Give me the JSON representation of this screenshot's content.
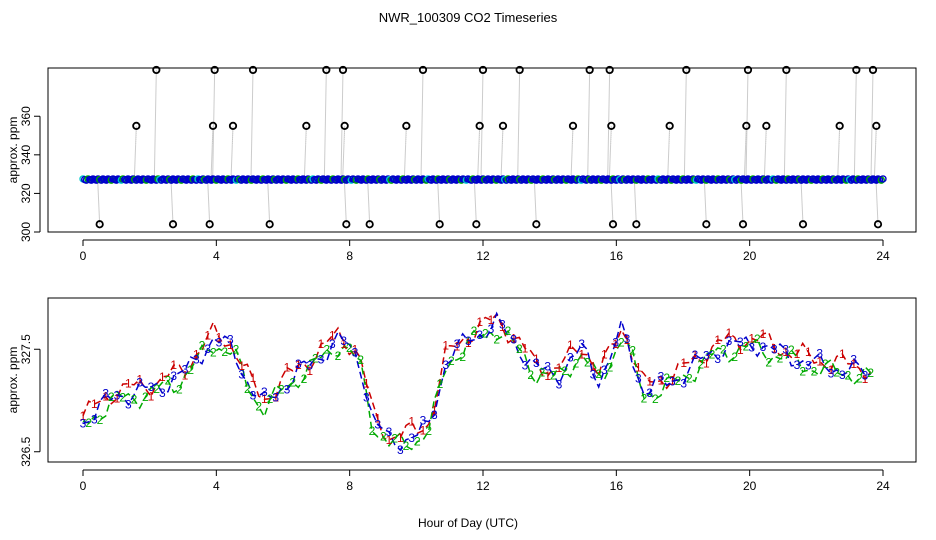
{
  "page": {
    "title": "NWR_100309  CO2 Timeseries",
    "xlabel": "Hour of Day (UTC)"
  },
  "chart_data": [
    {
      "type": "scatter",
      "ylabel": "approx. ppm",
      "xlim": [
        0,
        24
      ],
      "ylim": [
        300,
        385
      ],
      "x_ticks": [
        0,
        4,
        8,
        12,
        16,
        20,
        24
      ],
      "y_ticks": [
        300,
        320,
        340,
        360
      ],
      "baseline": 327.2,
      "baseline_colors": [
        "#0000cc",
        "#00aa00",
        "#00cccc"
      ],
      "outlier_color": "#000000",
      "connector_color": "#999999",
      "outliers": [
        {
          "x": 0.5,
          "y": 304
        },
        {
          "x": 1.6,
          "y": 355
        },
        {
          "x": 2.2,
          "y": 384
        },
        {
          "x": 2.7,
          "y": 304
        },
        {
          "x": 3.8,
          "y": 304
        },
        {
          "x": 3.9,
          "y": 355
        },
        {
          "x": 3.95,
          "y": 384
        },
        {
          "x": 4.5,
          "y": 355
        },
        {
          "x": 5.1,
          "y": 384
        },
        {
          "x": 5.6,
          "y": 304
        },
        {
          "x": 6.7,
          "y": 355
        },
        {
          "x": 7.3,
          "y": 384
        },
        {
          "x": 7.8,
          "y": 384
        },
        {
          "x": 7.85,
          "y": 355
        },
        {
          "x": 7.9,
          "y": 304
        },
        {
          "x": 8.6,
          "y": 304
        },
        {
          "x": 9.7,
          "y": 355
        },
        {
          "x": 10.2,
          "y": 384
        },
        {
          "x": 10.7,
          "y": 304
        },
        {
          "x": 11.8,
          "y": 304
        },
        {
          "x": 11.9,
          "y": 355
        },
        {
          "x": 12.0,
          "y": 384
        },
        {
          "x": 12.6,
          "y": 355
        },
        {
          "x": 13.1,
          "y": 384
        },
        {
          "x": 13.6,
          "y": 304
        },
        {
          "x": 14.7,
          "y": 355
        },
        {
          "x": 15.2,
          "y": 384
        },
        {
          "x": 15.8,
          "y": 384
        },
        {
          "x": 15.85,
          "y": 355
        },
        {
          "x": 15.9,
          "y": 304
        },
        {
          "x": 16.6,
          "y": 304
        },
        {
          "x": 17.6,
          "y": 355
        },
        {
          "x": 18.1,
          "y": 384
        },
        {
          "x": 18.7,
          "y": 304
        },
        {
          "x": 19.8,
          "y": 304
        },
        {
          "x": 19.9,
          "y": 355
        },
        {
          "x": 19.95,
          "y": 384
        },
        {
          "x": 20.5,
          "y": 355
        },
        {
          "x": 21.1,
          "y": 384
        },
        {
          "x": 21.6,
          "y": 304
        },
        {
          "x": 22.7,
          "y": 355
        },
        {
          "x": 23.2,
          "y": 384
        },
        {
          "x": 23.7,
          "y": 384
        },
        {
          "x": 23.8,
          "y": 355
        },
        {
          "x": 23.85,
          "y": 304
        }
      ]
    },
    {
      "type": "line",
      "ylabel": "approx. ppm",
      "xlim": [
        0,
        24
      ],
      "ylim": [
        326.4,
        328.0
      ],
      "x_ticks": [
        0,
        4,
        8,
        12,
        16,
        20,
        24
      ],
      "y_ticks": [
        326.5,
        327.5
      ],
      "knots": [
        [
          0.0,
          326.8
        ],
        [
          1.0,
          327.05
        ],
        [
          2.0,
          327.1
        ],
        [
          3.0,
          327.25
        ],
        [
          3.9,
          327.6
        ],
        [
          4.5,
          327.5
        ],
        [
          5.0,
          327.15
        ],
        [
          5.4,
          326.95
        ],
        [
          6.0,
          327.15
        ],
        [
          6.8,
          327.35
        ],
        [
          7.7,
          327.6
        ],
        [
          8.3,
          327.4
        ],
        [
          8.7,
          326.8
        ],
        [
          9.2,
          326.6
        ],
        [
          10.0,
          326.65
        ],
        [
          10.4,
          326.75
        ],
        [
          10.9,
          327.4
        ],
        [
          11.6,
          327.6
        ],
        [
          12.4,
          327.75
        ],
        [
          13.0,
          327.55
        ],
        [
          13.6,
          327.3
        ],
        [
          14.2,
          327.25
        ],
        [
          15.0,
          327.5
        ],
        [
          15.5,
          327.2
        ],
        [
          16.2,
          327.7
        ],
        [
          16.8,
          327.1
        ],
        [
          17.4,
          327.15
        ],
        [
          18.2,
          327.3
        ],
        [
          19.0,
          327.5
        ],
        [
          19.8,
          327.55
        ],
        [
          20.3,
          327.55
        ],
        [
          21.0,
          327.45
        ],
        [
          22.0,
          327.35
        ],
        [
          23.0,
          327.3
        ],
        [
          23.8,
          327.25
        ]
      ],
      "series": [
        {
          "name": "1",
          "color": "#cc0000",
          "offset": 0.05,
          "phase": 0.0
        },
        {
          "name": "2",
          "color": "#00aa00",
          "offset": -0.04,
          "phase": 2.1
        },
        {
          "name": "3",
          "color": "#0000cc",
          "offset": 0.0,
          "phase": 4.2
        }
      ]
    }
  ]
}
